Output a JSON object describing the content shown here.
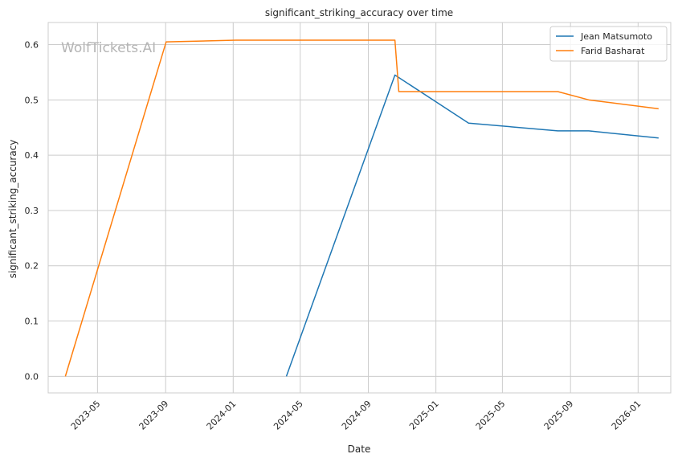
{
  "chart_data": {
    "type": "line",
    "title": "significant_striking_accuracy over time",
    "xlabel": "Date",
    "ylabel": "significant_striking_accuracy",
    "watermark": "WolfTickets.AI",
    "xlim": [
      "2023-02-01",
      "2026-03-01"
    ],
    "ylim": [
      -0.03,
      0.64
    ],
    "x_ticks": [
      "2023-05",
      "2023-09",
      "2024-01",
      "2024-05",
      "2024-09",
      "2025-01",
      "2025-05",
      "2025-09",
      "2026-01"
    ],
    "y_ticks": [
      "0.0",
      "0.1",
      "0.2",
      "0.3",
      "0.4",
      "0.5",
      "0.6"
    ],
    "grid": true,
    "legend_position": "top-right",
    "series": [
      {
        "name": "Jean Matsumoto",
        "color": "#1f77b4",
        "x": [
          "2024-04-06",
          "2024-10-19",
          "2025-03-01",
          "2025-08-09",
          "2025-10-04",
          "2026-02-07"
        ],
        "y": [
          0.0,
          0.545,
          0.458,
          0.444,
          0.444,
          0.431
        ]
      },
      {
        "name": "Farid Basharat",
        "color": "#ff7f0e",
        "x": [
          "2023-03-04",
          "2023-09-02",
          "2024-01-06",
          "2024-10-19",
          "2024-10-26",
          "2025-08-09",
          "2025-10-04",
          "2026-02-07"
        ],
        "y": [
          0.0,
          0.605,
          0.608,
          0.608,
          0.515,
          0.515,
          0.5,
          0.484
        ]
      }
    ]
  }
}
